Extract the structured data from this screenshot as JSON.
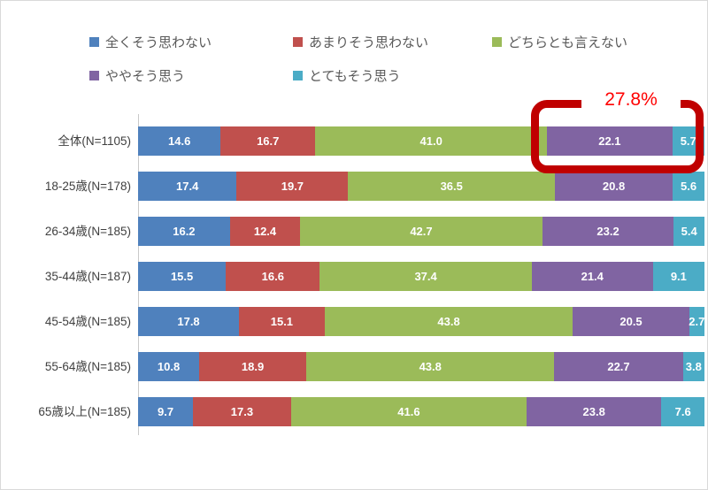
{
  "legend": {
    "items": [
      {
        "label": "全くそう思わない",
        "color": "#4F81BD"
      },
      {
        "label": "あまりそう思わない",
        "color": "#C0504D"
      },
      {
        "label": "どちらとも言えない",
        "color": "#9BBB59"
      },
      {
        "label": "ややそう思う",
        "color": "#8064A2"
      },
      {
        "label": "とてもそう思う",
        "color": "#4BACC6"
      }
    ]
  },
  "annotation": {
    "label": "27.8%",
    "text_color": "#FF0000",
    "box_color": "#C00000",
    "highlighted_row": "全体(N=1105)",
    "highlighted_series": [
      "ややそう思う",
      "とてもそう思う"
    ]
  },
  "chart_data": {
    "type": "bar",
    "orientation": "horizontal",
    "stacked": true,
    "unit": "%",
    "xlim": [
      0,
      100
    ],
    "grid": false,
    "legend_position": "top",
    "value_labels": "inside-white",
    "categories": [
      "全体(N=1105)",
      "18-25歳(N=178)",
      "26-34歳(N=185)",
      "35-44歳(N=187)",
      "45-54歳(N=185)",
      "55-64歳(N=185)",
      "65歳以上(N=185)"
    ],
    "series": [
      {
        "name": "全くそう思わない",
        "color": "#4F81BD",
        "values": [
          14.6,
          17.4,
          16.2,
          15.5,
          17.8,
          10.8,
          9.7
        ]
      },
      {
        "name": "あまりそう思わない",
        "color": "#C0504D",
        "values": [
          16.7,
          19.7,
          12.4,
          16.6,
          15.1,
          18.9,
          17.3
        ]
      },
      {
        "name": "どちらとも言えない",
        "color": "#9BBB59",
        "values": [
          41.0,
          36.5,
          42.7,
          37.4,
          43.8,
          43.8,
          41.6
        ]
      },
      {
        "name": "ややそう思う",
        "color": "#8064A2",
        "values": [
          22.1,
          20.8,
          23.2,
          21.4,
          20.5,
          22.7,
          23.8
        ]
      },
      {
        "name": "とてもそう思う",
        "color": "#4BACC6",
        "values": [
          5.7,
          5.6,
          5.4,
          9.1,
          2.7,
          3.8,
          7.6
        ]
      }
    ]
  }
}
